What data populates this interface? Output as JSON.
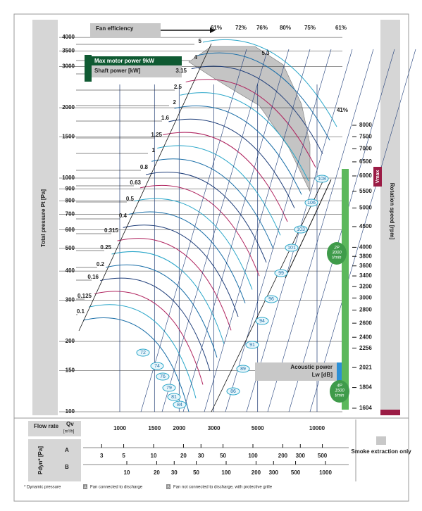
{
  "efficiency": {
    "label": "Fan efficiency",
    "values": [
      "61%",
      "72%",
      "76%",
      "80%",
      "75%",
      "61%"
    ],
    "side": "41%"
  },
  "max_motor_power": "Max motor power 9kW",
  "shaft_power": {
    "label": "Shaft power [kW]",
    "values": [
      "5",
      "4",
      "3.15",
      "2.5",
      "2",
      "1.6",
      "1.25",
      "1",
      "0.8",
      "0.63",
      "0.5",
      "0.4",
      "0.315",
      "0.25",
      "0.2",
      "0.16",
      "0.125",
      "0.1"
    ],
    "motor_mark": "5.3"
  },
  "pressure_axis": {
    "label": "Total pressure Pt [Pa]",
    "ticks": [
      100,
      150,
      200,
      300,
      400,
      500,
      600,
      700,
      800,
      900,
      1000,
      1500,
      2000,
      3000,
      3500,
      4000
    ]
  },
  "flow_axis": {
    "label": "Flow rate",
    "symbol": "Qv",
    "unit": "[m³/h]",
    "ticks": [
      1000,
      1500,
      2000,
      3000,
      5000,
      10000
    ]
  },
  "rpm_axis": {
    "label": "Rotation speed [rpm]",
    "vmax": "Vmax",
    "ticks": [
      8000,
      7500,
      7000,
      6500,
      6000,
      5500,
      5000,
      4500,
      4000,
      3800,
      3600,
      3400,
      3200,
      3000,
      2800,
      2600,
      2400,
      2256,
      2021,
      1804,
      1604
    ]
  },
  "acoustic": {
    "label_1": "Acoustic power",
    "label_2": "Lw [dB]",
    "values": [
      "108",
      "106",
      "103",
      "101",
      "99",
      "96",
      "94",
      "91",
      "89",
      "86",
      "84",
      "81",
      "79",
      "76",
      "74",
      "72"
    ]
  },
  "motors": [
    {
      "poles": "2P",
      "speed": "3000",
      "unit": "t/min"
    },
    {
      "poles": "4P",
      "speed": "1500",
      "unit": "t/min"
    }
  ],
  "dynamic_pressure": {
    "label": "Pdyn* [Pa]",
    "rows": [
      {
        "name": "A",
        "ticks": [
          3,
          5,
          10,
          20,
          30,
          50,
          100,
          200,
          300,
          500
        ]
      },
      {
        "name": "B",
        "ticks": [
          10,
          20,
          30,
          50,
          100,
          200,
          300,
          500,
          1000
        ]
      }
    ]
  },
  "smoke": "Smoke extraction only",
  "footnotes": {
    "dynamic": "* Dynamic pressure",
    "a_marker": "A",
    "a_text": "Fan connected to discharge",
    "b_marker": "B",
    "b_text": "Fan not connected to discharge, with protective grille"
  }
}
